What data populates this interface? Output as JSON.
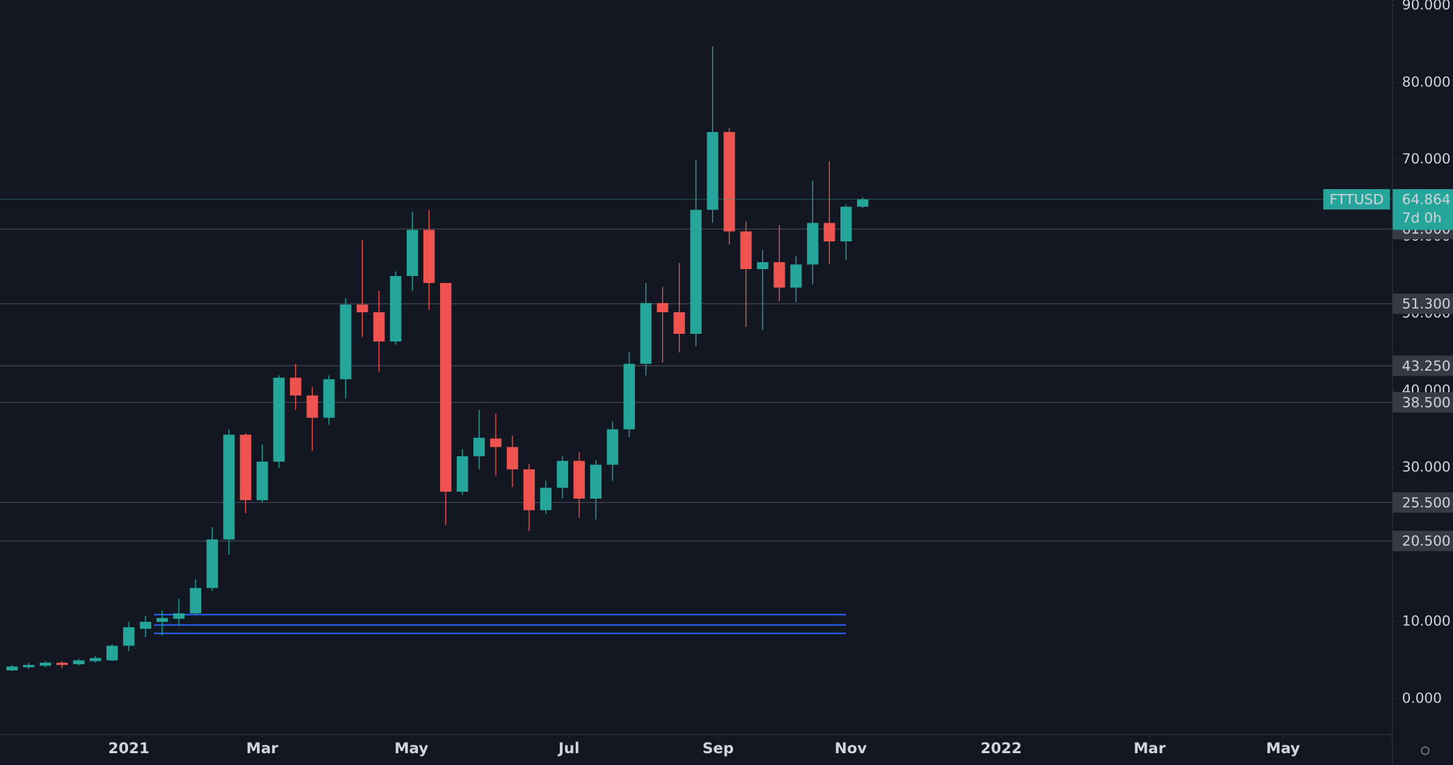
{
  "chart_data": {
    "type": "candlestick",
    "symbol": "FTTUSD",
    "price": 64.864,
    "countdown": "7d 0h",
    "colors": {
      "up": "#26a69a",
      "down": "#ef5350",
      "background": "#131722",
      "level": "#434651",
      "zone": "#2962ff"
    },
    "x": [
      1,
      2,
      3,
      4,
      5,
      6,
      7,
      8,
      9,
      10,
      11,
      12,
      13,
      14,
      15,
      16,
      17,
      18,
      19,
      20,
      21,
      22,
      23,
      24,
      25,
      26,
      27,
      28,
      29,
      30,
      31,
      32,
      33,
      34,
      35,
      36,
      37,
      38,
      39,
      40,
      41,
      42,
      43,
      44,
      45,
      46,
      47,
      48,
      49,
      50,
      51,
      52
    ],
    "open": [
      3.7,
      4.1,
      4.3,
      4.7,
      4.5,
      4.9,
      5.0,
      6.9,
      9.1,
      10.0,
      10.4,
      11.1,
      14.4,
      20.7,
      34.3,
      25.8,
      30.8,
      41.7,
      39.4,
      36.5,
      41.5,
      51.2,
      50.2,
      46.4,
      54.9,
      60.9,
      54.0,
      26.9,
      31.5,
      33.8,
      32.7,
      29.8,
      24.5,
      27.4,
      30.9,
      26.0,
      30.4,
      35.0,
      43.5,
      51.4,
      50.2,
      47.4,
      63.5,
      73.6,
      60.7,
      55.8,
      56.7,
      53.4,
      56.4,
      61.8,
      59.4,
      63.9
    ],
    "high": [
      4.4,
      4.7,
      4.9,
      4.9,
      5.2,
      5.6,
      7.1,
      10.0,
      10.8,
      11.5,
      13.0,
      15.5,
      22.3,
      35.0,
      34.5,
      33.0,
      42.0,
      43.5,
      40.5,
      42.0,
      52.0,
      59.6,
      53.0,
      55.5,
      63.2,
      63.5,
      54.0,
      32.4,
      37.5,
      37.0,
      34.2,
      30.5,
      28.3,
      31.5,
      32.0,
      31.0,
      36.0,
      45.0,
      54.0,
      53.5,
      56.6,
      70.0,
      84.7,
      74.1,
      62.0,
      58.3,
      61.5,
      57.5,
      67.3,
      69.8,
      64.2,
      65.1
    ],
    "low": [
      3.6,
      3.9,
      4.1,
      4.0,
      4.3,
      4.7,
      4.9,
      6.2,
      8.0,
      8.2,
      9.5,
      10.9,
      14.0,
      18.7,
      24.1,
      25.5,
      30.0,
      37.5,
      32.2,
      35.6,
      39.0,
      47.0,
      42.5,
      46.0,
      53.0,
      50.5,
      22.6,
      26.5,
      29.8,
      29.0,
      27.5,
      21.8,
      24.0,
      26.0,
      23.5,
      23.3,
      28.3,
      34.0,
      42.0,
      43.7,
      45.0,
      45.8,
      61.8,
      59.0,
      48.3,
      47.9,
      51.6,
      51.5,
      53.8,
      56.5,
      57.0,
      63.7
    ],
    "close": [
      4.2,
      4.4,
      4.7,
      4.4,
      5.0,
      5.3,
      6.9,
      9.3,
      10.0,
      10.5,
      11.1,
      14.4,
      20.7,
      34.3,
      25.8,
      30.8,
      41.7,
      39.4,
      36.5,
      41.5,
      51.2,
      50.2,
      46.4,
      54.9,
      60.9,
      54.0,
      26.9,
      31.5,
      33.9,
      32.7,
      29.8,
      24.5,
      27.4,
      30.9,
      26.0,
      30.4,
      35.0,
      43.5,
      51.4,
      50.2,
      47.4,
      63.5,
      73.6,
      60.7,
      55.8,
      56.7,
      53.4,
      56.4,
      61.8,
      59.4,
      63.9,
      64.864
    ],
    "xlim": [
      0.278,
      83.72
    ],
    "xticks": [
      {
        "value": 8,
        "label": "2021"
      },
      {
        "value": 16,
        "label": "Mar"
      },
      {
        "value": 24.94,
        "label": "May"
      },
      {
        "value": 34.39,
        "label": "Jul"
      },
      {
        "value": 43.33,
        "label": "Sep"
      },
      {
        "value": 51.28,
        "label": "Nov"
      },
      {
        "value": 60.3,
        "label": "2022"
      },
      {
        "value": 69.2,
        "label": "Mar"
      },
      {
        "value": 77.2,
        "label": "May"
      }
    ],
    "ylim": [
      -4.57,
      90.74
    ],
    "yticks": [
      {
        "value": 0,
        "label": "0.000"
      },
      {
        "value": 10,
        "label": "10.000"
      },
      {
        "value": 20,
        "label": "20.000"
      },
      {
        "value": 30,
        "label": "30.000"
      },
      {
        "value": 40,
        "label": "40.000"
      },
      {
        "value": 50,
        "label": "50.000"
      },
      {
        "value": 60,
        "label": "60.000"
      },
      {
        "value": 70,
        "label": "70.000"
      },
      {
        "value": 80,
        "label": "80.000"
      },
      {
        "value": 90,
        "label": "90.000"
      }
    ],
    "levels": [
      {
        "value": 61,
        "label": "61.000"
      },
      {
        "value": 51.3,
        "label": "51.300"
      },
      {
        "value": 43.25,
        "label": "43.250"
      },
      {
        "value": 38.5,
        "label": "38.500"
      },
      {
        "value": 25.5,
        "label": "25.500"
      },
      {
        "value": 20.5,
        "label": "20.500"
      }
    ],
    "zone_lines": [
      10.94,
      9.6,
      8.5
    ]
  }
}
